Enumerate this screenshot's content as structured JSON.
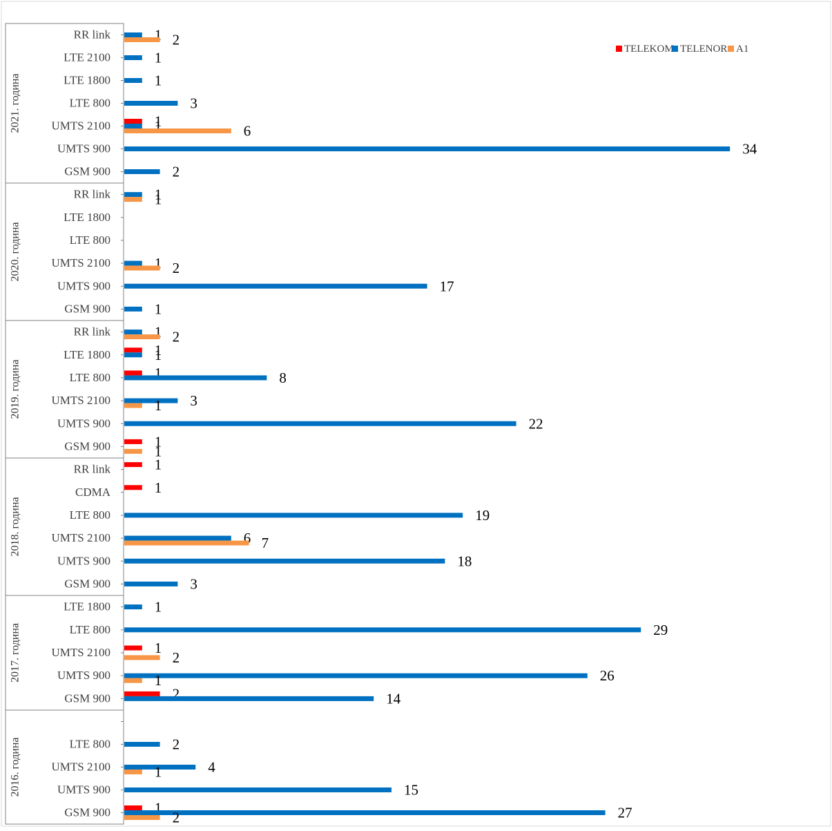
{
  "chart_data": {
    "type": "bar",
    "orientation": "horizontal",
    "legend": {
      "placement": "top-right",
      "entries": [
        {
          "name": "TELEKOM",
          "color": "#ff0000"
        },
        {
          "name": "TELENOR",
          "color": "#0070c0"
        },
        {
          "name": "A1",
          "color": "#f79646"
        }
      ]
    },
    "colors": {
      "TELEKOM": "#ff0000",
      "TELENOR": "#0070c0",
      "A1": "#f79646"
    },
    "groups": [
      {
        "year": "2021. година",
        "rows": [
          {
            "label": "RR link",
            "values": {
              "TELENOR": 1,
              "A1": 2
            }
          },
          {
            "label": "LTE 2100",
            "values": {
              "TELENOR": 1
            }
          },
          {
            "label": "LTE 1800",
            "values": {
              "TELENOR": 1
            }
          },
          {
            "label": "LTE 800",
            "values": {
              "TELENOR": 3
            }
          },
          {
            "label": "UMTS 2100",
            "values": {
              "TELEKOM": 1,
              "TELENOR": 1,
              "A1": 6
            }
          },
          {
            "label": "UMTS 900",
            "values": {
              "TELENOR": 34
            }
          },
          {
            "label": "GSM 900",
            "values": {
              "TELENOR": 2
            }
          }
        ]
      },
      {
        "year": "2020. година",
        "rows": [
          {
            "label": "RR link",
            "values": {
              "TELENOR": 1,
              "A1": 1
            }
          },
          {
            "label": "LTE 1800",
            "values": {}
          },
          {
            "label": "LTE 800",
            "values": {}
          },
          {
            "label": "UMTS 2100",
            "values": {
              "TELENOR": 1,
              "A1": 2
            }
          },
          {
            "label": "UMTS 900",
            "values": {
              "TELENOR": 17
            }
          },
          {
            "label": "GSM 900",
            "values": {
              "TELENOR": 1
            }
          }
        ]
      },
      {
        "year": "2019. година",
        "rows": [
          {
            "label": "RR link",
            "values": {
              "TELENOR": 1,
              "A1": 2
            }
          },
          {
            "label": "LTE 1800",
            "values": {
              "TELEKOM": 1,
              "TELENOR": 1
            }
          },
          {
            "label": "LTE 800",
            "values": {
              "TELEKOM": 1,
              "TELENOR": 8
            }
          },
          {
            "label": "UMTS 2100",
            "values": {
              "TELENOR": 3,
              "A1": 1
            }
          },
          {
            "label": "UMTS 900",
            "values": {
              "TELENOR": 22
            }
          },
          {
            "label": "GSM 900",
            "values": {
              "TELEKOM": 1,
              "A1": 1
            }
          }
        ]
      },
      {
        "year": "2018. година",
        "rows": [
          {
            "label": "RR link",
            "values": {
              "TELEKOM": 1
            }
          },
          {
            "label": "CDMA",
            "values": {
              "TELEKOM": 1
            }
          },
          {
            "label": "LTE 800",
            "values": {
              "TELENOR": 19
            }
          },
          {
            "label": "UMTS 2100",
            "values": {
              "TELENOR": 6,
              "A1": 7
            }
          },
          {
            "label": "UMTS 900",
            "values": {
              "TELENOR": 18
            }
          },
          {
            "label": "GSM 900",
            "values": {
              "TELENOR": 3
            }
          }
        ]
      },
      {
        "year": "2017. година",
        "rows": [
          {
            "label": "LTE 1800",
            "values": {
              "TELENOR": 1
            }
          },
          {
            "label": "LTE 800",
            "values": {
              "TELENOR": 29
            }
          },
          {
            "label": "UMTS 2100",
            "values": {
              "TELEKOM": 1,
              "A1": 2
            }
          },
          {
            "label": "UMTS 900",
            "values": {
              "TELENOR": 26,
              "A1": 1
            }
          },
          {
            "label": "GSM 900",
            "values": {
              "TELEKOM": 2,
              "TELENOR": 14
            }
          }
        ]
      },
      {
        "year": "2016. година",
        "rows": [
          {
            "label": "",
            "values": {}
          },
          {
            "label": "LTE 800",
            "values": {
              "TELENOR": 2
            }
          },
          {
            "label": "UMTS 2100",
            "values": {
              "TELENOR": 4,
              "A1": 1
            }
          },
          {
            "label": "UMTS 900",
            "values": {
              "TELENOR": 15
            }
          },
          {
            "label": "GSM 900",
            "values": {
              "TELEKOM": 1,
              "TELENOR": 27,
              "A1": 2
            }
          }
        ]
      }
    ]
  }
}
